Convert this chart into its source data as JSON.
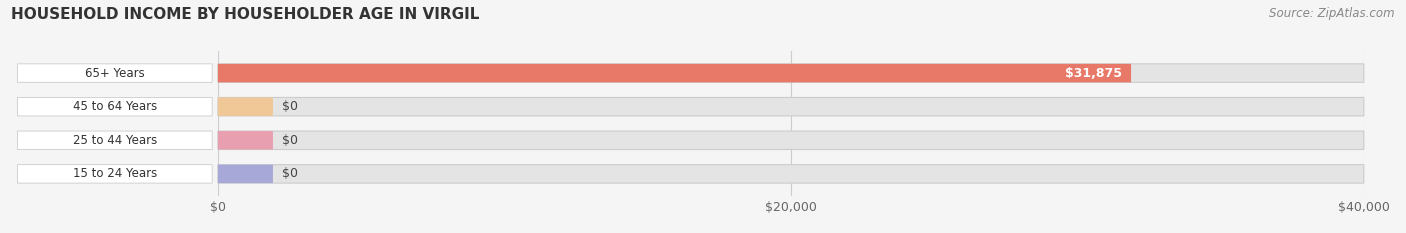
{
  "title": "HOUSEHOLD INCOME BY HOUSEHOLDER AGE IN VIRGIL",
  "source": "Source: ZipAtlas.com",
  "categories": [
    "15 to 24 Years",
    "25 to 44 Years",
    "45 to 64 Years",
    "65+ Years"
  ],
  "values": [
    0,
    0,
    0,
    31875
  ],
  "bar_colors": [
    "#a8a8d8",
    "#e8a0b0",
    "#f0c898",
    "#e87868"
  ],
  "xlim": [
    0,
    40000
  ],
  "xticks": [
    0,
    20000,
    40000
  ],
  "xtick_labels": [
    "$0",
    "$20,000",
    "$40,000"
  ],
  "bar_height": 0.55,
  "background_color": "#f5f5f5",
  "bar_bg_color": "#e4e4e4",
  "value_labels": [
    "$0",
    "$0",
    "$0",
    "$31,875"
  ]
}
